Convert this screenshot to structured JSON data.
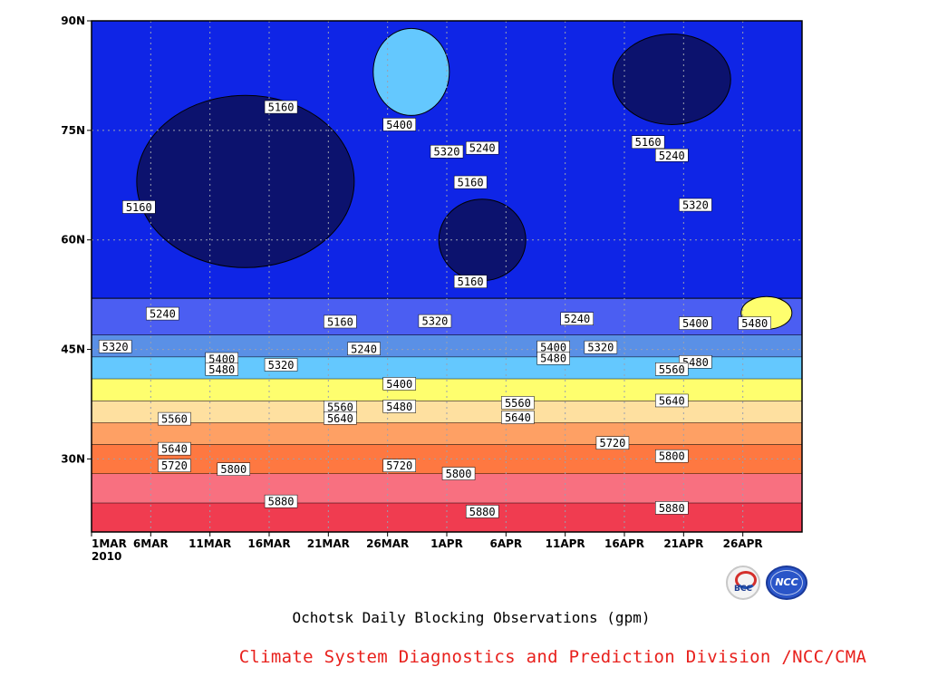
{
  "chart_data": {
    "type": "heatmap",
    "title": "",
    "x_ticks": [
      "1MAR",
      "6MAR",
      "11MAR",
      "16MAR",
      "21MAR",
      "26MAR",
      "1APR",
      "6APR",
      "11APR",
      "16APR",
      "21APR",
      "26APR"
    ],
    "x_year": "2010",
    "y_ticks": [
      "90N",
      "75N",
      "60N",
      "45N",
      "30N"
    ],
    "x_range": [
      "2010-03-01",
      "2010-04-30"
    ],
    "y_range": [
      20,
      90
    ],
    "units": "gpm",
    "contour_interval": 80,
    "contour_levels": [
      5160,
      5240,
      5320,
      5400,
      5480,
      5560,
      5640,
      5720,
      5800,
      5880
    ],
    "palette": [
      "#0c126e",
      "#0f25e6",
      "#4b5ef2",
      "#5a90e6",
      "#64c8fe",
      "#fefe6e",
      "#fee0a0",
      "#fea064",
      "#fe7841",
      "#f87080",
      "#f03c50"
    ],
    "latitude_bands": [
      {
        "lat_start": 20,
        "lat_end": 24,
        "value": 5880
      },
      {
        "lat_start": 24,
        "lat_end": 28,
        "value": 5800
      },
      {
        "lat_start": 28,
        "lat_end": 32,
        "value": 5720
      },
      {
        "lat_start": 32,
        "lat_end": 35,
        "value": 5640
      },
      {
        "lat_start": 35,
        "lat_end": 38,
        "value": 5560
      },
      {
        "lat_start": 38,
        "lat_end": 41,
        "value": 5480
      },
      {
        "lat_start": 41,
        "lat_end": 44,
        "value": 5400
      },
      {
        "lat_start": 44,
        "lat_end": 47,
        "value": 5320
      },
      {
        "lat_start": 47,
        "lat_end": 52,
        "value": 5240
      }
    ],
    "contour_labels": [
      {
        "date": "2010-03-17",
        "lat": 78.2,
        "value": 5160
      },
      {
        "date": "2010-03-27",
        "lat": 75.8,
        "value": 5400
      },
      {
        "date": "2010-03-31",
        "lat": 72.1,
        "value": 5320
      },
      {
        "date": "2010-04-03",
        "lat": 72.6,
        "value": 5240
      },
      {
        "date": "2010-04-17",
        "lat": 73.4,
        "value": 5160
      },
      {
        "date": "2010-04-19",
        "lat": 71.6,
        "value": 5240
      },
      {
        "date": "2010-04-02",
        "lat": 67.9,
        "value": 5160
      },
      {
        "date": "2010-04-21",
        "lat": 64.8,
        "value": 5320
      },
      {
        "date": "2010-03-05",
        "lat": 64.5,
        "value": 5160
      },
      {
        "date": "2010-04-02",
        "lat": 54.3,
        "value": 5160
      },
      {
        "date": "2010-03-07",
        "lat": 49.9,
        "value": 5240
      },
      {
        "date": "2010-04-11",
        "lat": 49.2,
        "value": 5240
      },
      {
        "date": "2010-03-22",
        "lat": 48.8,
        "value": 5160
      },
      {
        "date": "2010-03-30",
        "lat": 48.9,
        "value": 5320
      },
      {
        "date": "2010-04-21",
        "lat": 48.6,
        "value": 5400
      },
      {
        "date": "2010-04-26",
        "lat": 48.6,
        "value": 5480
      },
      {
        "date": "2010-03-03",
        "lat": 45.4,
        "value": 5320
      },
      {
        "date": "2010-04-09",
        "lat": 45.3,
        "value": 5400
      },
      {
        "date": "2010-04-13",
        "lat": 45.3,
        "value": 5320
      },
      {
        "date": "2010-03-24",
        "lat": 45.1,
        "value": 5240
      },
      {
        "date": "2010-03-12",
        "lat": 43.7,
        "value": 5400
      },
      {
        "date": "2010-04-09",
        "lat": 43.8,
        "value": 5480
      },
      {
        "date": "2010-04-21",
        "lat": 43.3,
        "value": 5480
      },
      {
        "date": "2010-03-17",
        "lat": 42.9,
        "value": 5320
      },
      {
        "date": "2010-03-12",
        "lat": 42.3,
        "value": 5480
      },
      {
        "date": "2010-04-19",
        "lat": 42.3,
        "value": 5560
      },
      {
        "date": "2010-03-27",
        "lat": 40.3,
        "value": 5400
      },
      {
        "date": "2010-04-06",
        "lat": 37.7,
        "value": 5560
      },
      {
        "date": "2010-04-19",
        "lat": 38.0,
        "value": 5640
      },
      {
        "date": "2010-03-27",
        "lat": 37.2,
        "value": 5480
      },
      {
        "date": "2010-03-22",
        "lat": 37.1,
        "value": 5560
      },
      {
        "date": "2010-03-22",
        "lat": 35.6,
        "value": 5640
      },
      {
        "date": "2010-04-06",
        "lat": 35.7,
        "value": 5640
      },
      {
        "date": "2010-03-08",
        "lat": 35.5,
        "value": 5560
      },
      {
        "date": "2010-04-14",
        "lat": 32.2,
        "value": 5720
      },
      {
        "date": "2010-03-08",
        "lat": 31.4,
        "value": 5640
      },
      {
        "date": "2010-04-19",
        "lat": 30.4,
        "value": 5800
      },
      {
        "date": "2010-03-08",
        "lat": 29.1,
        "value": 5720
      },
      {
        "date": "2010-03-27",
        "lat": 29.1,
        "value": 5720
      },
      {
        "date": "2010-03-13",
        "lat": 28.6,
        "value": 5800
      },
      {
        "date": "2010-04-01",
        "lat": 28.0,
        "value": 5800
      },
      {
        "date": "2010-03-17",
        "lat": 24.2,
        "value": 5880
      },
      {
        "date": "2010-04-19",
        "lat": 23.3,
        "value": 5880
      },
      {
        "date": "2010-04-03",
        "lat": 22.8,
        "value": 5880
      }
    ],
    "grid": true,
    "legend": "none"
  },
  "caption": {
    "title": "Ochotsk Daily Blocking Observations (gpm)",
    "organization": "Climate System Diagnostics and Prediction Division /NCC/CMA"
  },
  "logos": {
    "bcc_text": "BCC",
    "ncc_text": "NCC"
  }
}
